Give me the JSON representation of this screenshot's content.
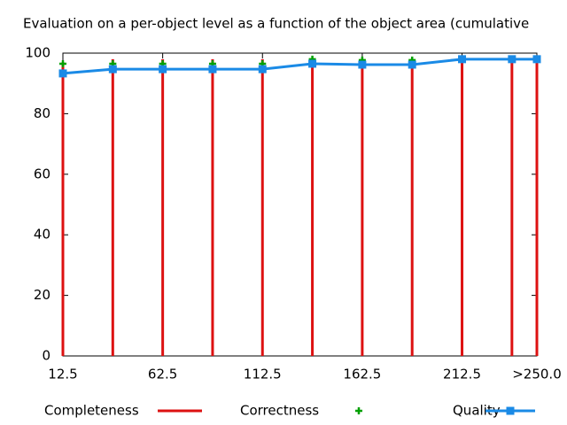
{
  "chart_data": {
    "type": "line",
    "title": "Evaluation on a per-object level as a function of the object area (cumulative",
    "x": [
      12.5,
      37.5,
      62.5,
      87.5,
      112.5,
      137.5,
      162.5,
      187.5,
      212.5,
      237.5,
      250
    ],
    "xlim": [
      12.5,
      250
    ],
    "xticks": [
      12.5,
      62.5,
      112.5,
      162.5,
      212.5,
      {
        "value": 250,
        "label": ">250.0"
      }
    ],
    "ylim": [
      0,
      100
    ],
    "yticks": [
      0,
      20,
      40,
      60,
      80,
      100
    ],
    "grid": false,
    "legend": "bottom",
    "series": [
      {
        "name": "Completeness",
        "type": "impulses",
        "color": "#dd1111",
        "values": [
          97,
          98,
          98,
          98,
          98,
          98,
          98,
          98,
          99,
          99,
          99
        ]
      },
      {
        "name": "Correctness",
        "type": "points",
        "color": "#00a000",
        "values": [
          96.5,
          96.5,
          96.5,
          96.5,
          96.5,
          98,
          97.7,
          97.7,
          98,
          98,
          98
        ]
      },
      {
        "name": "Quality",
        "type": "linespoints",
        "color": "#1a8ae6",
        "values": [
          93.3,
          94.7,
          94.7,
          94.7,
          94.7,
          96.5,
          96.2,
          96.2,
          98,
          98,
          98
        ]
      }
    ]
  }
}
